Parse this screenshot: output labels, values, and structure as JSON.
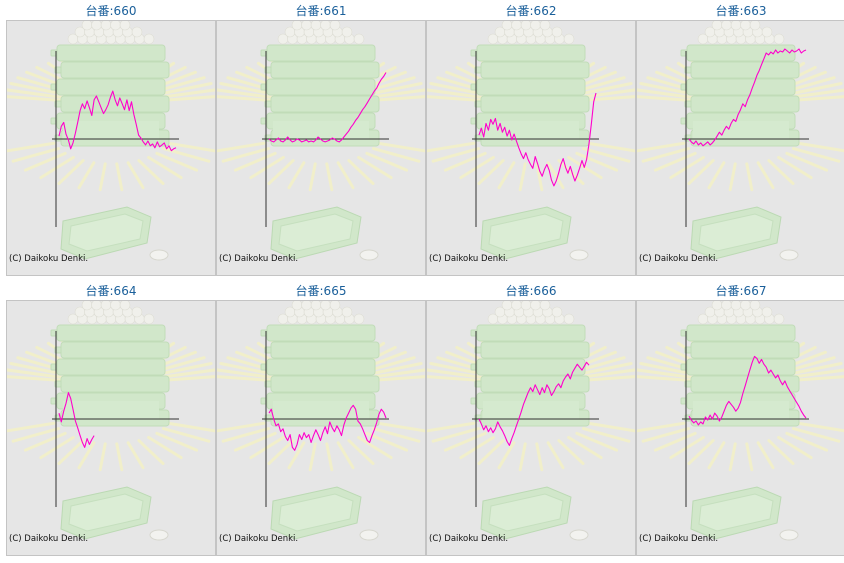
{
  "copyright": "(C) Daikoku Denki.",
  "colors": {
    "title": "#1a5f9a",
    "line": "#ff00cc",
    "axis": "#333333",
    "panel_bg": "#e6e6e6",
    "illustration": "#cde7c6"
  },
  "chart_data": [
    {
      "type": "line",
      "title": "台番:660",
      "x": [
        0,
        2,
        4,
        6,
        8,
        10,
        12,
        14,
        16,
        18,
        20,
        22,
        24,
        26,
        28,
        30,
        32,
        34,
        36,
        38,
        40,
        42,
        44,
        46,
        48,
        50,
        52,
        54,
        56,
        58,
        60,
        62,
        64,
        66,
        68,
        70,
        72,
        74,
        76,
        78,
        80,
        82,
        84,
        86,
        88,
        90,
        92,
        94,
        96,
        98,
        100
      ],
      "y": [
        300,
        1300,
        1700,
        500,
        -100,
        -1000,
        -400,
        600,
        1700,
        2900,
        3600,
        3100,
        3900,
        3200,
        2400,
        4000,
        4400,
        3800,
        3200,
        2600,
        3000,
        3500,
        4300,
        4900,
        4000,
        3400,
        4200,
        3600,
        3000,
        4000,
        2900,
        3800,
        2500,
        1500,
        400,
        100,
        -300,
        -600,
        -200,
        -700,
        -500,
        -900,
        -300,
        -800,
        -600,
        -400,
        -1000,
        -700,
        -1200,
        -1000,
        -900
      ]
    },
    {
      "type": "line",
      "title": "台番:661",
      "x": [
        0,
        2,
        4,
        6,
        8,
        10,
        12,
        14,
        16,
        18,
        20,
        22,
        24,
        26,
        28,
        30,
        32,
        34,
        36,
        38,
        40,
        42,
        44,
        46,
        48,
        50,
        52,
        54,
        56,
        58,
        60,
        62,
        64,
        66,
        68,
        70,
        72,
        74,
        76,
        78,
        80,
        82,
        84,
        86,
        88,
        90,
        92,
        94,
        96,
        98,
        100
      ],
      "y": [
        0,
        -200,
        -300,
        -100,
        100,
        -200,
        -300,
        -100,
        200,
        -100,
        -300,
        -200,
        0,
        -100,
        -300,
        -200,
        -100,
        -300,
        -200,
        -300,
        -100,
        200,
        0,
        -200,
        -300,
        -200,
        -100,
        100,
        0,
        -200,
        -300,
        -100,
        200,
        500,
        800,
        1200,
        1500,
        1900,
        2200,
        2600,
        3000,
        3300,
        3700,
        4100,
        4500,
        4900,
        5200,
        5700,
        6100,
        6400,
        6800
      ]
    },
    {
      "type": "line",
      "title": "台番:662",
      "x": [
        0,
        2,
        4,
        6,
        8,
        10,
        12,
        14,
        16,
        18,
        20,
        22,
        24,
        26,
        28,
        30,
        32,
        34,
        36,
        38,
        40,
        42,
        44,
        46,
        48,
        50,
        52,
        54,
        56,
        58,
        60,
        62,
        64,
        66,
        68,
        70,
        72,
        74,
        76,
        78,
        80,
        82,
        84,
        86,
        88,
        90,
        92,
        94,
        96,
        98,
        100
      ],
      "y": [
        400,
        1100,
        200,
        1600,
        900,
        2000,
        1500,
        2100,
        900,
        1600,
        700,
        1200,
        300,
        900,
        -100,
        500,
        -200,
        -900,
        -1500,
        -2000,
        -1400,
        -2100,
        -2600,
        -3000,
        -1800,
        -2500,
        -3300,
        -3800,
        -3100,
        -2600,
        -3200,
        -4200,
        -4800,
        -4300,
        -3500,
        -2600,
        -2000,
        -2900,
        -3500,
        -2800,
        -3600,
        -4300,
        -3700,
        -3000,
        -2200,
        -2900,
        -2100,
        -500,
        1500,
        3800,
        4700
      ]
    },
    {
      "type": "line",
      "title": "台番:663",
      "x": [
        0,
        2,
        4,
        6,
        8,
        10,
        12,
        14,
        16,
        18,
        20,
        22,
        24,
        26,
        28,
        30,
        32,
        34,
        36,
        38,
        40,
        42,
        44,
        46,
        48,
        50,
        52,
        54,
        56,
        58,
        60,
        62,
        64,
        66,
        68,
        70,
        72,
        74,
        76,
        78,
        80,
        82,
        84,
        86,
        88,
        90,
        92,
        94,
        96,
        98,
        100
      ],
      "y": [
        0,
        -300,
        -500,
        -200,
        -600,
        -400,
        -700,
        -500,
        -300,
        -600,
        -400,
        -100,
        300,
        700,
        400,
        900,
        1300,
        1000,
        1600,
        2000,
        1800,
        2500,
        3000,
        3600,
        3300,
        4000,
        4500,
        5200,
        5800,
        6500,
        7000,
        7600,
        8200,
        8800,
        8600,
        8900,
        8700,
        9100,
        8800,
        9000,
        8900,
        9200,
        9000,
        8800,
        9100,
        8900,
        9000,
        9200,
        8800,
        9000,
        9100
      ]
    },
    {
      "type": "line",
      "title": "台番:664",
      "x": [
        0,
        2,
        4,
        6,
        8,
        10,
        12,
        14,
        16,
        18,
        20,
        22,
        24,
        26,
        28,
        30,
        32,
        34,
        36,
        38,
        40,
        42,
        44,
        46,
        48,
        50,
        52,
        54,
        56,
        58,
        60,
        62,
        64,
        66,
        68,
        70,
        72,
        74,
        76,
        78,
        80,
        82,
        84,
        86,
        88,
        90,
        92,
        94,
        96,
        98,
        100
      ],
      "y": [
        600,
        -300,
        800,
        1600,
        2700,
        2100,
        1000,
        -200,
        -900,
        -1700,
        -2400,
        -2900,
        -2000,
        -2600,
        -2100,
        -1700,
        null,
        null,
        null,
        null,
        null,
        null,
        null,
        null,
        null,
        null,
        null,
        null,
        null,
        null,
        null,
        null,
        null,
        null,
        null,
        null,
        null,
        null,
        null,
        null,
        null,
        null,
        null,
        null,
        null,
        null,
        null,
        null,
        null,
        null,
        null
      ]
    },
    {
      "type": "line",
      "title": "台番:665",
      "x": [
        0,
        2,
        4,
        6,
        8,
        10,
        12,
        14,
        16,
        18,
        20,
        22,
        24,
        26,
        28,
        30,
        32,
        34,
        36,
        38,
        40,
        42,
        44,
        46,
        48,
        50,
        52,
        54,
        56,
        58,
        60,
        62,
        64,
        66,
        68,
        70,
        72,
        74,
        76,
        78,
        80,
        82,
        84,
        86,
        88,
        90,
        92,
        94,
        96,
        98,
        100
      ],
      "y": [
        600,
        1000,
        0,
        -700,
        -500,
        -1300,
        -1000,
        -1800,
        -2200,
        -1600,
        -2900,
        -3200,
        -2600,
        -1600,
        -2100,
        -1400,
        -1900,
        -1600,
        -2400,
        -1700,
        -1100,
        -1600,
        -2200,
        -1400,
        -800,
        -1500,
        -300,
        -900,
        -1300,
        -700,
        -1100,
        -1700,
        -600,
        100,
        600,
        1100,
        1400,
        1000,
        -200,
        -500,
        -1000,
        -1600,
        -2200,
        -2400,
        -1700,
        -1100,
        -400,
        500,
        1000,
        700,
        100
      ]
    },
    {
      "type": "line",
      "title": "台番:666",
      "x": [
        0,
        2,
        4,
        6,
        8,
        10,
        12,
        14,
        16,
        18,
        20,
        22,
        24,
        26,
        28,
        30,
        32,
        34,
        36,
        38,
        40,
        42,
        44,
        46,
        48,
        50,
        52,
        54,
        56,
        58,
        60,
        62,
        64,
        66,
        68,
        70,
        72,
        74,
        76,
        78,
        80,
        82,
        84,
        86,
        88,
        90,
        92,
        94,
        96,
        98,
        100
      ],
      "y": [
        0,
        -500,
        -1100,
        -700,
        -1300,
        -900,
        -1400,
        -1000,
        -300,
        -800,
        -1200,
        -1700,
        -2300,
        -2700,
        -2000,
        -1400,
        -700,
        0,
        700,
        1500,
        2100,
        2700,
        3200,
        2800,
        3500,
        3000,
        2500,
        3200,
        2700,
        3500,
        3100,
        2400,
        2800,
        3300,
        3600,
        3200,
        3900,
        4300,
        4600,
        4100,
        4800,
        5200,
        5600,
        5300,
        5000,
        5400,
        5800,
        5500,
        null,
        null,
        null
      ]
    },
    {
      "type": "line",
      "title": "台番:667",
      "x": [
        0,
        2,
        4,
        6,
        8,
        10,
        12,
        14,
        16,
        18,
        20,
        22,
        24,
        26,
        28,
        30,
        32,
        34,
        36,
        38,
        40,
        42,
        44,
        46,
        48,
        50,
        52,
        54,
        56,
        58,
        60,
        62,
        64,
        66,
        68,
        70,
        72,
        74,
        76,
        78,
        80,
        82,
        84,
        86,
        88,
        90,
        92,
        94,
        96,
        98,
        100
      ],
      "y": [
        300,
        -100,
        -400,
        -200,
        -600,
        -300,
        -500,
        200,
        -100,
        400,
        0,
        600,
        300,
        -200,
        200,
        800,
        1400,
        1800,
        1500,
        1200,
        800,
        1100,
        1700,
        2600,
        3400,
        4200,
        5000,
        5800,
        6400,
        6200,
        5700,
        6100,
        5600,
        5300,
        4700,
        5000,
        4600,
        4200,
        4500,
        3900,
        3500,
        3900,
        3300,
        2900,
        2500,
        2100,
        1700,
        1300,
        800,
        400,
        100
      ]
    }
  ]
}
